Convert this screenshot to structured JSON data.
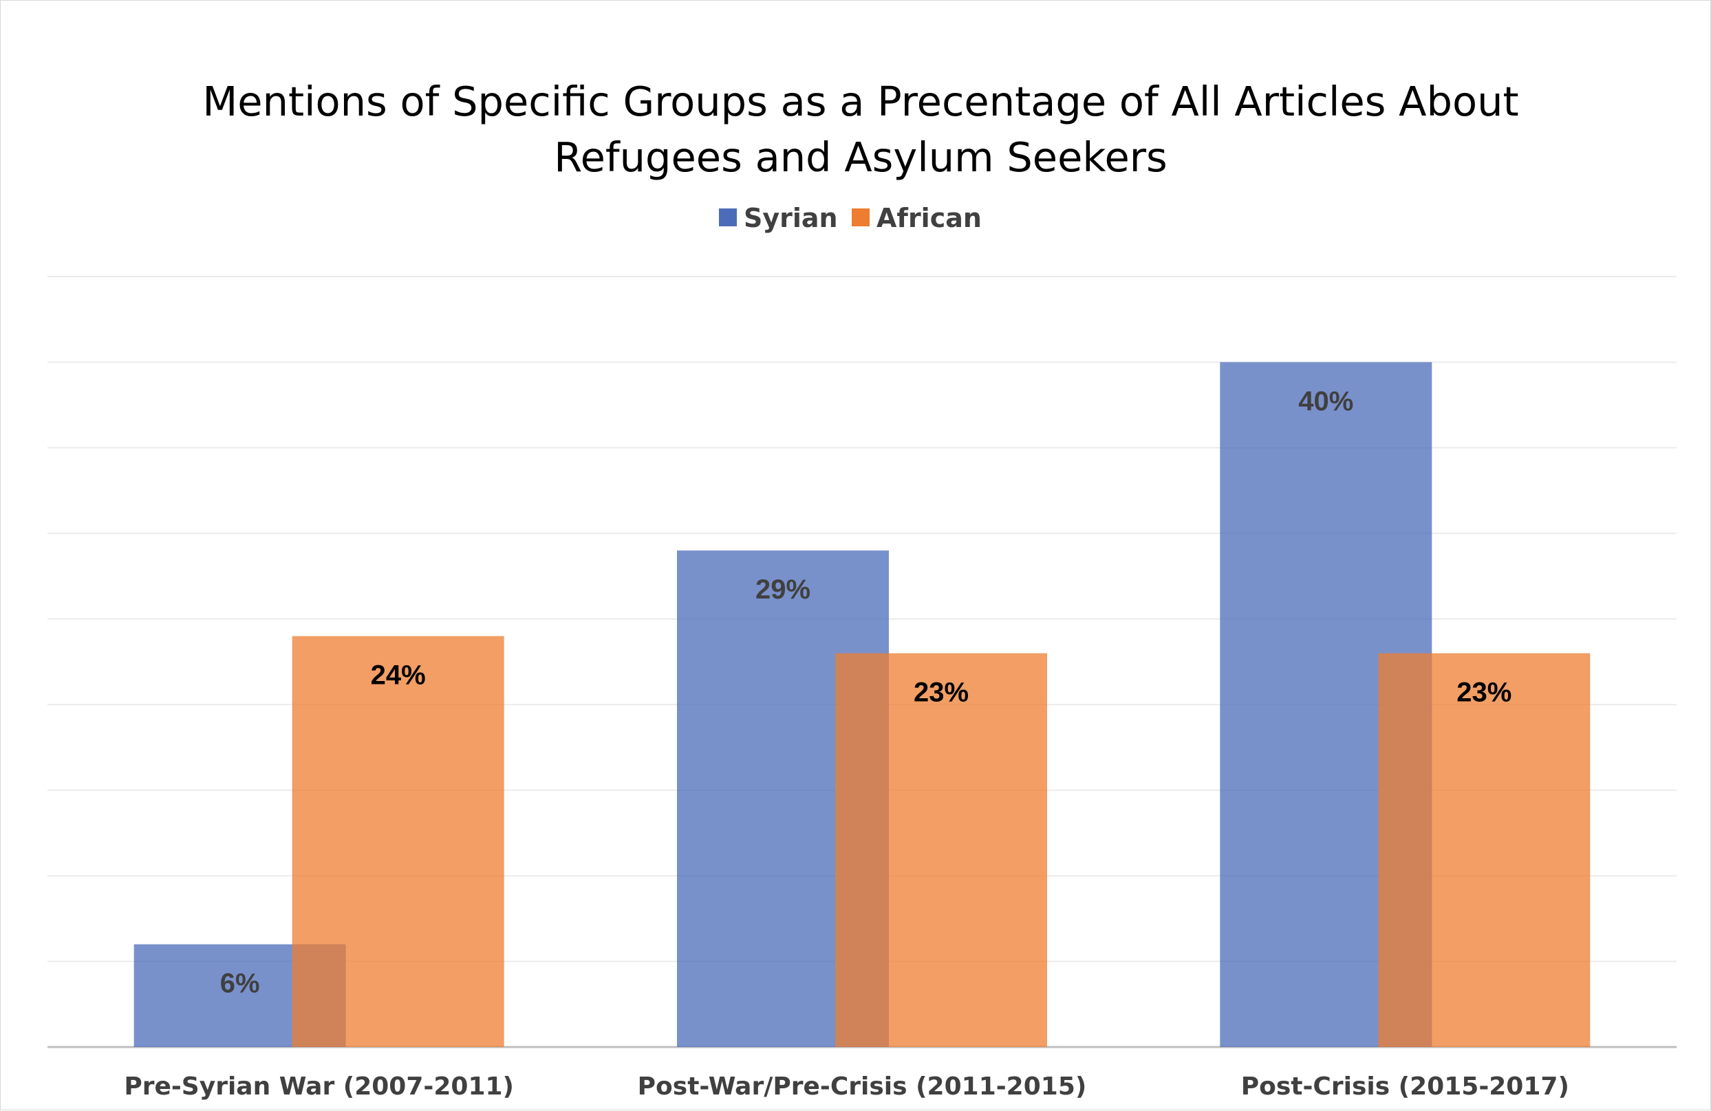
{
  "colors": {
    "syrian": "#4C6CB9",
    "african": "#ED7D31",
    "grid": "#ebebeb",
    "axis": "#bfbfbf"
  },
  "chart_data": {
    "type": "bar",
    "title_lines": [
      "Mentions of Specific Groups as a Precentage of All Articles About",
      "Refugees and Asylum Seekers"
    ],
    "categories": [
      "Pre-Syrian War (2007-2011)",
      "Post-War/Pre-Crisis (2011-2015)",
      "Post-Crisis (2015-2017)"
    ],
    "series": [
      {
        "name": "Syrian",
        "values": [
          6,
          29,
          40
        ],
        "labels": [
          "6%",
          "29%",
          "40%"
        ],
        "label_color": "#404040"
      },
      {
        "name": "African",
        "values": [
          24,
          23,
          23
        ],
        "labels": [
          "24%",
          "23%",
          "23%"
        ],
        "label_color": "#000000"
      }
    ],
    "ylim": [
      0,
      45
    ],
    "grid_step": 5,
    "grid": true,
    "legend_position": "top",
    "bar_opacity": 0.75,
    "overlapping_bars": true
  }
}
